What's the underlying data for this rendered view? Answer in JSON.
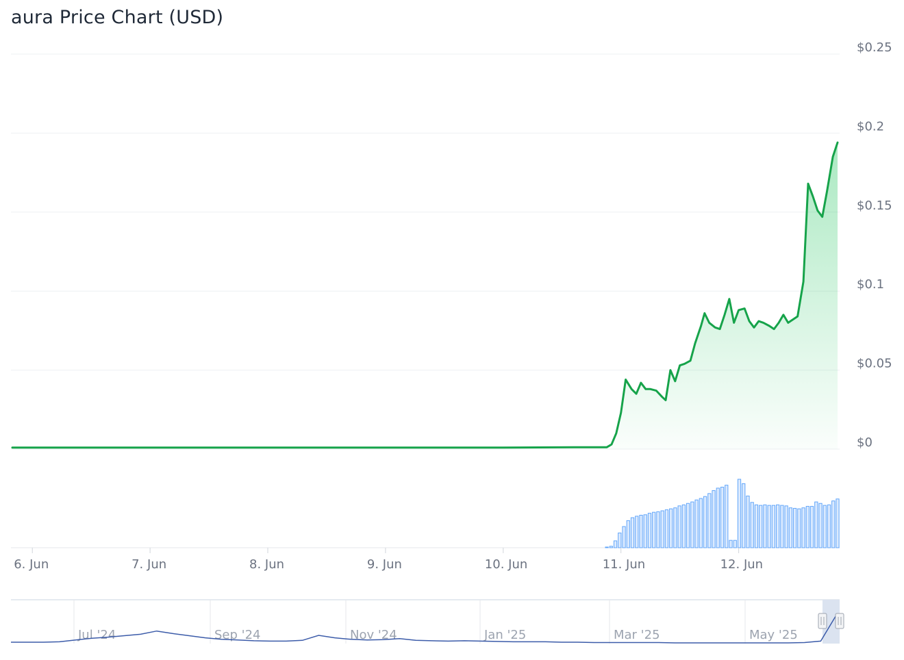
{
  "title": "aura Price Chart (USD)",
  "colors": {
    "price_line": "#16a34a",
    "price_fill": "#22c55e",
    "volume_bar_stroke": "#60a5fa",
    "volume_bar_fill": "#dbeafe",
    "navigator_line": "#3b5ba9",
    "navigator_selection": "#dbe3f0"
  },
  "chart_data": {
    "type": "area",
    "title": "aura Price Chart (USD)",
    "xlabel": "",
    "ylabel": "",
    "ylim": [
      0,
      0.25
    ],
    "y_ticks": [
      {
        "value": 0,
        "label": "$0"
      },
      {
        "value": 0.05,
        "label": "$0.05"
      },
      {
        "value": 0.1,
        "label": "$0.1"
      },
      {
        "value": 0.15,
        "label": "$0.15"
      },
      {
        "value": 0.2,
        "label": "$0.2"
      },
      {
        "value": 0.25,
        "label": "$0.25"
      }
    ],
    "x_ticks": [
      {
        "value": 0,
        "label": "6. Jun"
      },
      {
        "value": 1,
        "label": "7. Jun"
      },
      {
        "value": 2,
        "label": "8. Jun"
      },
      {
        "value": 3,
        "label": "9. Jun"
      },
      {
        "value": 4,
        "label": "10. Jun"
      },
      {
        "value": 5,
        "label": "11. Jun"
      },
      {
        "value": 6,
        "label": "12. Jun"
      }
    ],
    "xlim": [
      -0.17,
      6.84
    ],
    "grid": true,
    "series": [
      {
        "values": [
          [
            -0.17,
            0.001
          ],
          [
            1.0,
            0.001
          ],
          [
            2.0,
            0.001
          ],
          [
            3.0,
            0.001
          ],
          [
            4.0,
            0.001
          ],
          [
            4.6,
            0.0012
          ],
          [
            4.88,
            0.0012
          ],
          [
            4.92,
            0.003
          ],
          [
            4.96,
            0.01
          ],
          [
            5.0,
            0.023
          ],
          [
            5.04,
            0.044
          ],
          [
            5.09,
            0.038
          ],
          [
            5.13,
            0.035
          ],
          [
            5.17,
            0.042
          ],
          [
            5.21,
            0.038
          ],
          [
            5.25,
            0.038
          ],
          [
            5.3,
            0.037
          ],
          [
            5.35,
            0.033
          ],
          [
            5.38,
            0.031
          ],
          [
            5.42,
            0.05
          ],
          [
            5.46,
            0.043
          ],
          [
            5.5,
            0.053
          ],
          [
            5.54,
            0.054
          ],
          [
            5.59,
            0.056
          ],
          [
            5.63,
            0.067
          ],
          [
            5.68,
            0.078
          ],
          [
            5.71,
            0.086
          ],
          [
            5.75,
            0.08
          ],
          [
            5.8,
            0.077
          ],
          [
            5.84,
            0.076
          ],
          [
            5.88,
            0.085
          ],
          [
            5.92,
            0.095
          ],
          [
            5.96,
            0.08
          ],
          [
            6.0,
            0.088
          ],
          [
            6.05,
            0.089
          ],
          [
            6.09,
            0.081
          ],
          [
            6.13,
            0.077
          ],
          [
            6.17,
            0.081
          ],
          [
            6.21,
            0.08
          ],
          [
            6.26,
            0.078
          ],
          [
            6.3,
            0.076
          ],
          [
            6.34,
            0.08
          ],
          [
            6.38,
            0.085
          ],
          [
            6.42,
            0.08
          ],
          [
            6.46,
            0.082
          ],
          [
            6.5,
            0.084
          ],
          [
            6.55,
            0.106
          ],
          [
            6.59,
            0.168
          ],
          [
            6.63,
            0.16
          ],
          [
            6.67,
            0.151
          ],
          [
            6.71,
            0.147
          ],
          [
            6.75,
            0.163
          ],
          [
            6.8,
            0.185
          ],
          [
            6.84,
            0.194
          ]
        ]
      }
    ],
    "volume": {
      "start": 4.88,
      "end": 6.84,
      "values": [
        0.01,
        0.03,
        0.14,
        0.3,
        0.43,
        0.55,
        0.61,
        0.64,
        0.66,
        0.67,
        0.7,
        0.72,
        0.73,
        0.75,
        0.77,
        0.79,
        0.81,
        0.85,
        0.87,
        0.9,
        0.93,
        0.97,
        1.0,
        1.04,
        1.1,
        1.16,
        1.21,
        1.23,
        1.27,
        0.15,
        0.15,
        1.39,
        1.3,
        1.05,
        0.92,
        0.87,
        0.86,
        0.87,
        0.86,
        0.86,
        0.87,
        0.86,
        0.85,
        0.81,
        0.8,
        0.79,
        0.81,
        0.84,
        0.84,
        0.93,
        0.9,
        0.86,
        0.87,
        0.95,
        0.99
      ]
    },
    "navigator": {
      "x_labels": [
        "Jul '24",
        "Sep '24",
        "Nov '24",
        "Jan '25",
        "Mar '25",
        "May '25"
      ],
      "values": [
        0.02,
        0.02,
        0.02,
        0.03,
        0.08,
        0.13,
        0.16,
        0.2,
        0.24,
        0.33,
        0.26,
        0.2,
        0.14,
        0.1,
        0.08,
        0.06,
        0.05,
        0.05,
        0.07,
        0.21,
        0.14,
        0.1,
        0.08,
        0.09,
        0.12,
        0.07,
        0.06,
        0.05,
        0.06,
        0.05,
        0.04,
        0.03,
        0.03,
        0.03,
        0.02,
        0.02,
        0.01,
        0.01,
        0.01,
        0.01,
        0.01,
        0.0,
        0.0,
        0.0,
        0.0,
        0.0,
        0.0,
        0.0,
        0.0,
        0.01,
        0.05,
        0.8
      ]
    }
  }
}
